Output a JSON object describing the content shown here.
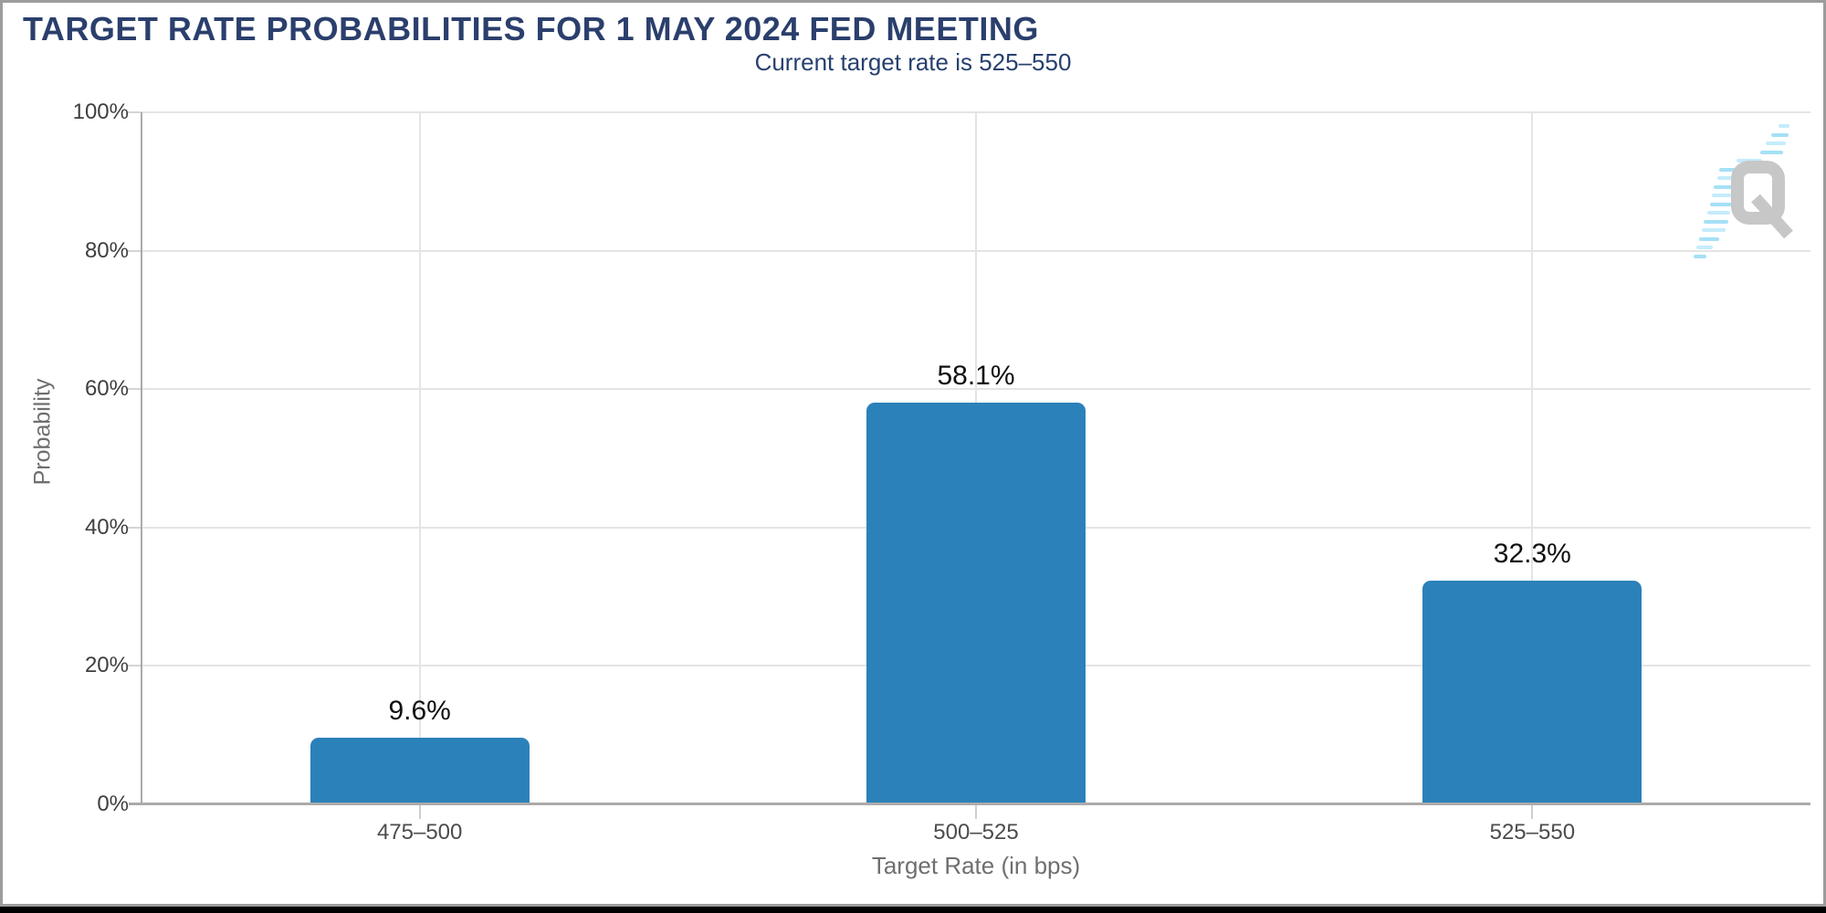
{
  "header": {
    "title": "TARGET RATE PROBABILITIES FOR 1 MAY 2024 FED MEETING",
    "subtitle": "Current target rate is 525–550"
  },
  "logo": {
    "letter": "Q"
  },
  "chart_data": {
    "type": "bar",
    "title": "TARGET RATE PROBABILITIES FOR 1 MAY 2024 FED MEETING",
    "subtitle": "Current target rate is 525–550",
    "categories": [
      "475–500",
      "500–525",
      "525–550"
    ],
    "values": [
      9.6,
      58.1,
      32.3
    ],
    "value_labels": [
      "9.6%",
      "58.1%",
      "32.3%"
    ],
    "xlabel": "Target Rate (in bps)",
    "ylabel": "Probability",
    "ylim": [
      0,
      100
    ],
    "yticks": [
      0,
      20,
      40,
      60,
      80,
      100
    ],
    "ytick_labels": [
      "0%",
      "20%",
      "40%",
      "60%",
      "80%",
      "100%"
    ],
    "grid": true,
    "legend": false,
    "bar_color": "#2b81b9"
  },
  "colors": {
    "title_navy": "#2b3f6d",
    "bar_blue": "#2b81b9",
    "gridline": "#e4e4e4",
    "axis_line": "#ababab",
    "frame_border": "#9c9c9c",
    "logo_gray": "#c7c7c7",
    "logo_blue": "#a5e0f7"
  }
}
